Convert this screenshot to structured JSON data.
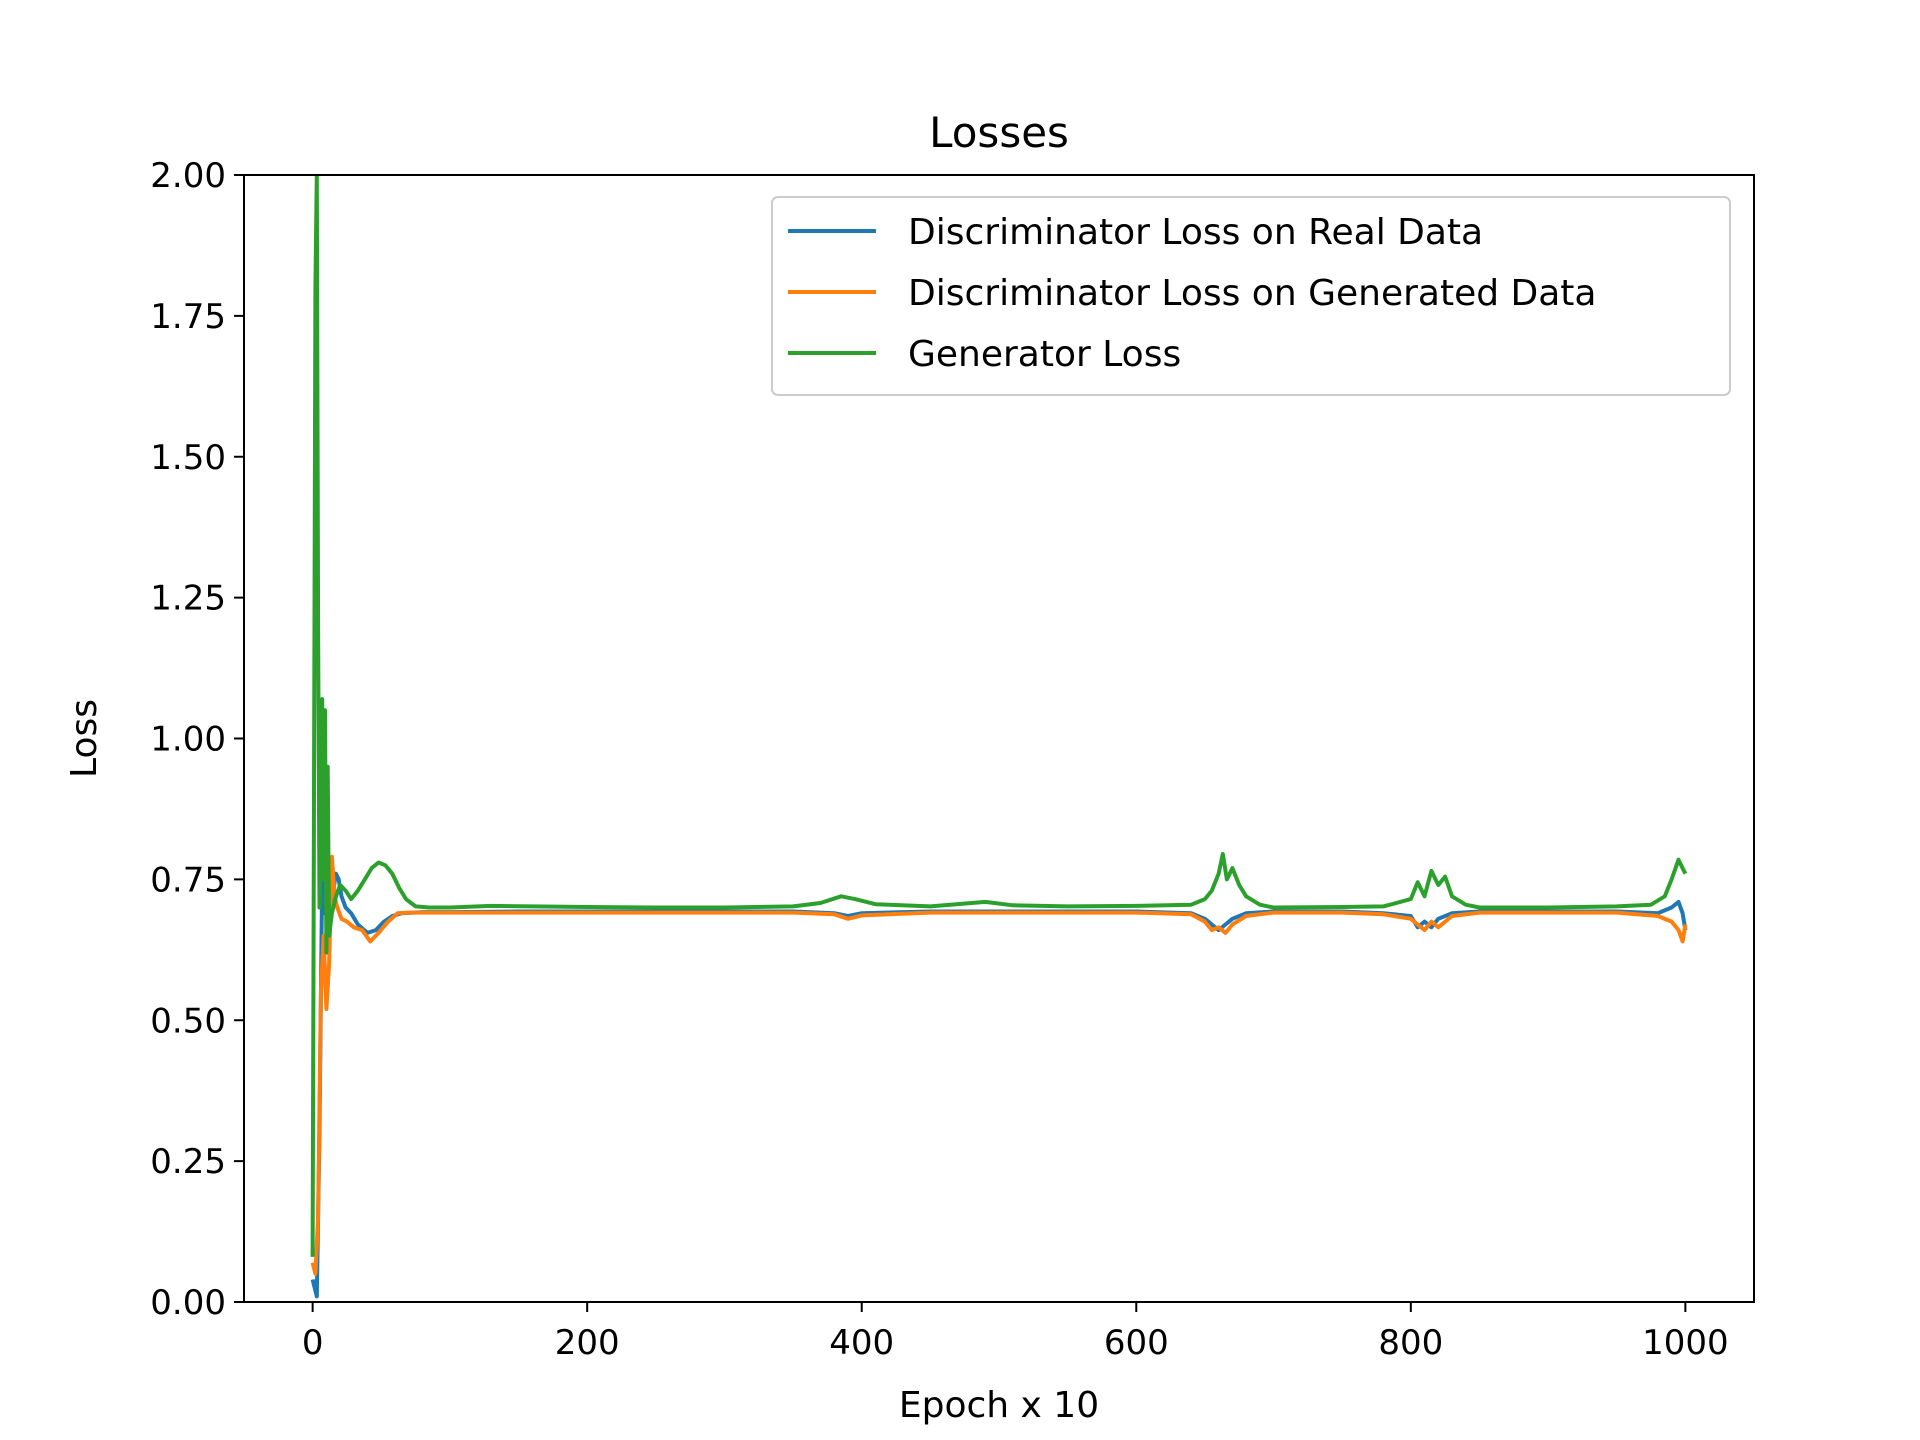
{
  "chart_data": {
    "type": "line",
    "title": "Losses",
    "xlabel": "Epoch x 10",
    "ylabel": "Loss",
    "xlim": [
      -50,
      1050
    ],
    "ylim": [
      0,
      2
    ],
    "xticks": [
      0,
      200,
      400,
      600,
      800,
      1000
    ],
    "xtick_labels": [
      "0",
      "200",
      "400",
      "600",
      "800",
      "1000"
    ],
    "yticks": [
      0,
      0.25,
      0.5,
      0.75,
      1.0,
      1.25,
      1.5,
      1.75,
      2.0
    ],
    "ytick_labels": [
      "0.00",
      "0.25",
      "0.50",
      "0.75",
      "1.00",
      "1.25",
      "1.50",
      "1.75",
      "2.00"
    ],
    "grid": false,
    "legend_position": "top-right",
    "series": [
      {
        "name": "Discriminator Loss on Real Data",
        "color": "#1f77b4",
        "points": [
          [
            0,
            0.04
          ],
          [
            2,
            0.02
          ],
          [
            3,
            0.01
          ],
          [
            5,
            0.3
          ],
          [
            7,
            0.76
          ],
          [
            9,
            0.69
          ],
          [
            11,
            0.7
          ],
          [
            13,
            0.68
          ],
          [
            15,
            0.73
          ],
          [
            17,
            0.76
          ],
          [
            19,
            0.75
          ],
          [
            21,
            0.72
          ],
          [
            24,
            0.7
          ],
          [
            28,
            0.69
          ],
          [
            33,
            0.67
          ],
          [
            40,
            0.655
          ],
          [
            46,
            0.66
          ],
          [
            52,
            0.675
          ],
          [
            58,
            0.685
          ],
          [
            65,
            0.69
          ],
          [
            80,
            0.692
          ],
          [
            100,
            0.692
          ],
          [
            150,
            0.693
          ],
          [
            200,
            0.693
          ],
          [
            250,
            0.693
          ],
          [
            300,
            0.693
          ],
          [
            350,
            0.693
          ],
          [
            380,
            0.69
          ],
          [
            390,
            0.685
          ],
          [
            400,
            0.69
          ],
          [
            450,
            0.693
          ],
          [
            500,
            0.693
          ],
          [
            550,
            0.693
          ],
          [
            600,
            0.693
          ],
          [
            640,
            0.69
          ],
          [
            650,
            0.68
          ],
          [
            655,
            0.67
          ],
          [
            660,
            0.66
          ],
          [
            665,
            0.67
          ],
          [
            670,
            0.68
          ],
          [
            680,
            0.69
          ],
          [
            700,
            0.693
          ],
          [
            750,
            0.693
          ],
          [
            780,
            0.69
          ],
          [
            800,
            0.685
          ],
          [
            805,
            0.665
          ],
          [
            810,
            0.675
          ],
          [
            815,
            0.665
          ],
          [
            820,
            0.68
          ],
          [
            830,
            0.69
          ],
          [
            850,
            0.693
          ],
          [
            900,
            0.693
          ],
          [
            950,
            0.693
          ],
          [
            980,
            0.69
          ],
          [
            990,
            0.7
          ],
          [
            995,
            0.71
          ],
          [
            998,
            0.69
          ],
          [
            1000,
            0.66
          ]
        ]
      },
      {
        "name": "Discriminator Loss on Generated Data",
        "color": "#ff7f0e",
        "points": [
          [
            0,
            0.07
          ],
          [
            2,
            0.05
          ],
          [
            4,
            0.15
          ],
          [
            6,
            0.55
          ],
          [
            8,
            0.65
          ],
          [
            10,
            0.52
          ],
          [
            12,
            0.6
          ],
          [
            14,
            0.79
          ],
          [
            16,
            0.72
          ],
          [
            18,
            0.7
          ],
          [
            21,
            0.68
          ],
          [
            25,
            0.675
          ],
          [
            30,
            0.665
          ],
          [
            36,
            0.66
          ],
          [
            42,
            0.64
          ],
          [
            48,
            0.655
          ],
          [
            55,
            0.675
          ],
          [
            62,
            0.69
          ],
          [
            70,
            0.691
          ],
          [
            100,
            0.691
          ],
          [
            150,
            0.691
          ],
          [
            200,
            0.691
          ],
          [
            250,
            0.691
          ],
          [
            300,
            0.691
          ],
          [
            350,
            0.691
          ],
          [
            380,
            0.688
          ],
          [
            390,
            0.68
          ],
          [
            400,
            0.686
          ],
          [
            450,
            0.691
          ],
          [
            500,
            0.691
          ],
          [
            550,
            0.691
          ],
          [
            600,
            0.691
          ],
          [
            640,
            0.688
          ],
          [
            650,
            0.675
          ],
          [
            655,
            0.66
          ],
          [
            660,
            0.665
          ],
          [
            665,
            0.655
          ],
          [
            670,
            0.67
          ],
          [
            680,
            0.685
          ],
          [
            700,
            0.691
          ],
          [
            750,
            0.691
          ],
          [
            780,
            0.688
          ],
          [
            800,
            0.68
          ],
          [
            805,
            0.67
          ],
          [
            810,
            0.66
          ],
          [
            815,
            0.675
          ],
          [
            820,
            0.665
          ],
          [
            830,
            0.685
          ],
          [
            850,
            0.691
          ],
          [
            900,
            0.691
          ],
          [
            950,
            0.691
          ],
          [
            980,
            0.685
          ],
          [
            990,
            0.675
          ],
          [
            995,
            0.66
          ],
          [
            998,
            0.64
          ],
          [
            1000,
            0.67
          ]
        ]
      },
      {
        "name": "Generator Loss",
        "color": "#2ca02c",
        "points": [
          [
            0,
            0.08
          ],
          [
            1,
            0.9
          ],
          [
            2,
            1.8
          ],
          [
            3,
            2.0
          ],
          [
            4,
            1.2
          ],
          [
            5,
            0.7
          ],
          [
            6,
            0.9
          ],
          [
            7,
            1.07
          ],
          [
            8,
            0.75
          ],
          [
            9,
            1.05
          ],
          [
            10,
            0.62
          ],
          [
            11,
            0.95
          ],
          [
            12,
            0.65
          ],
          [
            14,
            0.69
          ],
          [
            17,
            0.72
          ],
          [
            20,
            0.74
          ],
          [
            24,
            0.73
          ],
          [
            28,
            0.715
          ],
          [
            33,
            0.73
          ],
          [
            38,
            0.75
          ],
          [
            43,
            0.77
          ],
          [
            48,
            0.78
          ],
          [
            53,
            0.775
          ],
          [
            58,
            0.76
          ],
          [
            63,
            0.735
          ],
          [
            68,
            0.715
          ],
          [
            75,
            0.702
          ],
          [
            85,
            0.7
          ],
          [
            100,
            0.7
          ],
          [
            130,
            0.703
          ],
          [
            160,
            0.702
          ],
          [
            200,
            0.701
          ],
          [
            250,
            0.7
          ],
          [
            300,
            0.7
          ],
          [
            350,
            0.702
          ],
          [
            370,
            0.708
          ],
          [
            385,
            0.72
          ],
          [
            395,
            0.715
          ],
          [
            410,
            0.706
          ],
          [
            450,
            0.702
          ],
          [
            490,
            0.71
          ],
          [
            510,
            0.704
          ],
          [
            550,
            0.702
          ],
          [
            600,
            0.703
          ],
          [
            640,
            0.705
          ],
          [
            650,
            0.715
          ],
          [
            655,
            0.73
          ],
          [
            660,
            0.76
          ],
          [
            663,
            0.795
          ],
          [
            666,
            0.75
          ],
          [
            670,
            0.77
          ],
          [
            675,
            0.74
          ],
          [
            680,
            0.72
          ],
          [
            690,
            0.705
          ],
          [
            700,
            0.7
          ],
          [
            750,
            0.701
          ],
          [
            780,
            0.702
          ],
          [
            800,
            0.715
          ],
          [
            805,
            0.745
          ],
          [
            810,
            0.72
          ],
          [
            815,
            0.765
          ],
          [
            820,
            0.74
          ],
          [
            825,
            0.755
          ],
          [
            830,
            0.72
          ],
          [
            840,
            0.705
          ],
          [
            850,
            0.7
          ],
          [
            900,
            0.7
          ],
          [
            950,
            0.702
          ],
          [
            975,
            0.705
          ],
          [
            985,
            0.72
          ],
          [
            990,
            0.75
          ],
          [
            995,
            0.785
          ],
          [
            998,
            0.77
          ],
          [
            1000,
            0.76
          ]
        ]
      }
    ]
  }
}
